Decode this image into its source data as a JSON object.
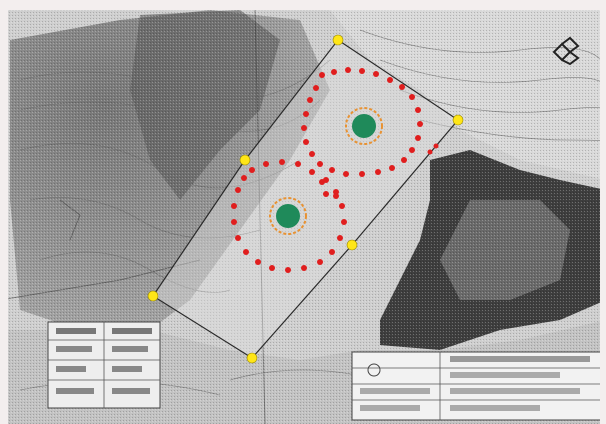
{
  "map": {
    "background_color": "#cfcfcf",
    "dark_terrain_color": "#3e3e3e",
    "site_boundary_color": "#2a2a2a",
    "survey_marker_color": "#ffe617",
    "boundary_marker_color": "#e01e1e",
    "well_fill_color": "#1f8a5a",
    "well_ring_color": "#e89232"
  },
  "boundary_points": [
    {
      "name": "corner-n"
    },
    {
      "name": "corner-e"
    },
    {
      "name": "corner-nw"
    },
    {
      "name": "corner-mid-e"
    },
    {
      "name": "corner-w"
    },
    {
      "name": "corner-s"
    }
  ],
  "wells": [
    {
      "name": "well-north"
    },
    {
      "name": "well-south"
    }
  ],
  "north_arrow": {
    "icon": "north-arrow-icon"
  },
  "title_block": {
    "icon": "title-block-icon"
  },
  "legend_box": {
    "icon": "legend-box-icon"
  }
}
